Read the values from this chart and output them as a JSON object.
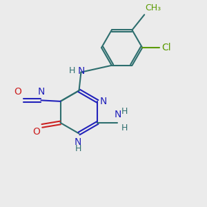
{
  "bg_color": "#ebebeb",
  "bond_color": "#2d6e6e",
  "N_color": "#2222bb",
  "O_color": "#cc2222",
  "Cl_color": "#5a9a00",
  "H_color": "#2d6e6e",
  "line_width": 1.5,
  "font_size": 10,
  "figsize": [
    3.0,
    3.0
  ],
  "dpi": 100,
  "xlim": [
    0,
    10
  ],
  "ylim": [
    0,
    10
  ]
}
